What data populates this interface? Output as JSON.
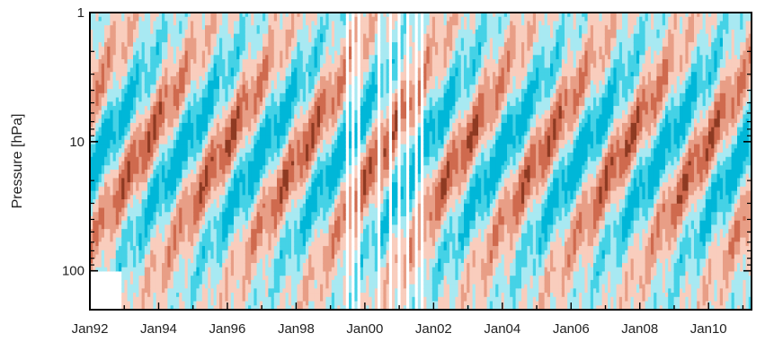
{
  "chart_data": {
    "type": "heatmap",
    "title": "",
    "xlabel": "",
    "ylabel": "Pressure [hPa]",
    "y_scale": "log",
    "y_inverted": true,
    "y_ticks": [
      {
        "value": 1,
        "label": "1"
      },
      {
        "value": 10,
        "label": "10"
      },
      {
        "value": 100,
        "label": "100"
      }
    ],
    "y_range": [
      1,
      200
    ],
    "x_range": [
      "1992-01",
      "2011-04"
    ],
    "x_ticks": [
      {
        "value": "1992-01",
        "label": "Jan92"
      },
      {
        "value": "1994-01",
        "label": "Jan94"
      },
      {
        "value": "1996-01",
        "label": "Jan96"
      },
      {
        "value": "1998-01",
        "label": "Jan98"
      },
      {
        "value": "2000-01",
        "label": "Jan00"
      },
      {
        "value": "2002-01",
        "label": "Jan02"
      },
      {
        "value": "2004-01",
        "label": "Jan04"
      },
      {
        "value": "2006-01",
        "label": "Jan06"
      },
      {
        "value": "2008-01",
        "label": "Jan08"
      },
      {
        "value": "2010-01",
        "label": "Jan10"
      }
    ],
    "colors": {
      "neg_strong": "#00b7d8",
      "neg_mid": "#45d2e6",
      "neg_weak": "#a8e9f2",
      "pos_weak": "#f9cdbd",
      "pos_mid": "#e89e86",
      "pos_strong": "#cf6a4e",
      "pos_max": "#8e3a22",
      "missing": "#ffffff"
    },
    "levels": [
      -3,
      -2,
      -1,
      0,
      1,
      2,
      3
    ],
    "qbo_period_months": 28,
    "data_gaps": [
      [
        "1999-06",
        "1999-07"
      ],
      [
        "1999-08",
        "1999-09"
      ],
      [
        "1999-10",
        "1999-11"
      ],
      [
        "2000-05",
        "2000-06"
      ],
      [
        "2000-09",
        "2000-10"
      ],
      [
        "2000-12",
        "2001-01"
      ],
      [
        "2001-03",
        "2001-04"
      ],
      [
        "2001-06",
        "2001-07"
      ],
      [
        "2001-09",
        "2001-10"
      ]
    ],
    "lower_missing_until": "1992-12",
    "lower_missing_below_hPa": 100
  }
}
